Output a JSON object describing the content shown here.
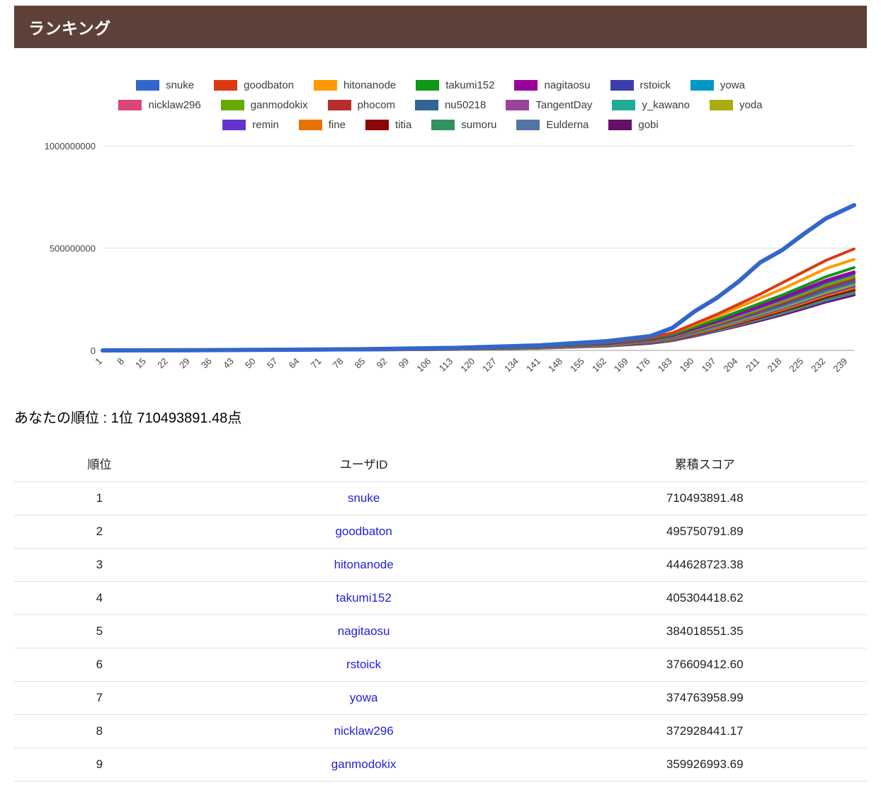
{
  "page": {
    "title": "ランキング",
    "your_rank_text": "あなたの順位 : 1位 710493891.48点"
  },
  "colors": {
    "header_bg": "#5D4037",
    "link": "#2222DD",
    "axis_text": "#444444",
    "gridline": "#e0e0e0",
    "baseline": "#9e9e9e",
    "legend_text": "#3c3c3c"
  },
  "chart_data": {
    "type": "line",
    "title": "",
    "xlabel": "",
    "ylabel": "",
    "legend_position": "top",
    "grid": true,
    "x_range": [
      1,
      241
    ],
    "ylim_points": [
      0,
      1000000000
    ],
    "values_unit": "millions_of_points",
    "y_ticks": [
      {
        "value_millions": 1000,
        "label": "1000000000"
      },
      {
        "value_millions": 500,
        "label": "500000000"
      },
      {
        "value_millions": 0,
        "label": "0"
      }
    ],
    "x_ticks": [
      1,
      8,
      15,
      22,
      29,
      36,
      43,
      50,
      57,
      64,
      71,
      78,
      85,
      92,
      99,
      106,
      113,
      120,
      127,
      134,
      141,
      148,
      155,
      162,
      169,
      176,
      183,
      190,
      197,
      204,
      211,
      218,
      225,
      232,
      239
    ],
    "x_keypoints": [
      1,
      29,
      57,
      85,
      113,
      141,
      162,
      176,
      183,
      190,
      197,
      204,
      211,
      218,
      225,
      232,
      241
    ],
    "legend_rows": [
      [
        0,
        1,
        2,
        3,
        4,
        5,
        6
      ],
      [
        7,
        8,
        9,
        10,
        11,
        12,
        13
      ],
      [
        14,
        15,
        16,
        17,
        18,
        19
      ]
    ],
    "series": [
      {
        "name": "snuke",
        "color": "#3366CC",
        "values": [
          0,
          1,
          3,
          6,
          12,
          25,
          45,
          70,
          110,
          190,
          255,
          335,
          430,
          490,
          570,
          645,
          710
        ]
      },
      {
        "name": "goodbaton",
        "color": "#DC3912",
        "values": [
          0,
          1,
          3,
          6,
          11,
          22,
          40,
          62,
          85,
          130,
          175,
          225,
          275,
          330,
          385,
          440,
          496
        ]
      },
      {
        "name": "hitonanode",
        "color": "#FF9900",
        "values": [
          0,
          1,
          3,
          7,
          13,
          24,
          42,
          64,
          85,
          125,
          165,
          210,
          255,
          300,
          350,
          400,
          445
        ]
      },
      {
        "name": "takumi152",
        "color": "#109618",
        "values": [
          0,
          1,
          2,
          5,
          10,
          20,
          37,
          58,
          78,
          115,
          150,
          190,
          230,
          270,
          315,
          360,
          405
        ]
      },
      {
        "name": "nagitaosu",
        "color": "#990099",
        "values": [
          0,
          1,
          2,
          5,
          10,
          19,
          35,
          55,
          74,
          108,
          142,
          180,
          218,
          258,
          300,
          342,
          384
        ]
      },
      {
        "name": "rstoick",
        "color": "#3B3EAC",
        "values": [
          0,
          1,
          2,
          5,
          9,
          19,
          34,
          54,
          72,
          106,
          140,
          176,
          214,
          252,
          292,
          335,
          377
        ]
      },
      {
        "name": "yowa",
        "color": "#0099C6",
        "values": [
          0,
          1,
          2,
          4,
          9,
          18,
          34,
          53,
          71,
          105,
          138,
          174,
          212,
          250,
          290,
          332,
          375
        ]
      },
      {
        "name": "nicklaw296",
        "color": "#DD4477",
        "values": [
          0,
          1,
          2,
          4,
          9,
          18,
          33,
          52,
          70,
          103,
          136,
          172,
          209,
          247,
          288,
          330,
          373
        ]
      },
      {
        "name": "ganmodokix",
        "color": "#66AA00",
        "values": [
          0,
          1,
          2,
          4,
          8,
          17,
          32,
          50,
          67,
          99,
          131,
          166,
          202,
          239,
          278,
          319,
          360
        ]
      },
      {
        "name": "phocom",
        "color": "#B82E2E",
        "values": [
          0,
          1,
          2,
          4,
          8,
          16,
          31,
          48,
          65,
          96,
          127,
          161,
          196,
          232,
          270,
          310,
          350
        ]
      },
      {
        "name": "nu50218",
        "color": "#316395",
        "values": [
          0,
          1,
          2,
          4,
          8,
          16,
          30,
          47,
          63,
          93,
          123,
          156,
          190,
          225,
          262,
          300,
          340
        ]
      },
      {
        "name": "TangentDay",
        "color": "#994499",
        "values": [
          0,
          1,
          2,
          4,
          7,
          15,
          29,
          46,
          62,
          91,
          121,
          153,
          186,
          221,
          257,
          295,
          334
        ]
      },
      {
        "name": "y_kawano",
        "color": "#22AA99",
        "values": [
          0,
          0,
          2,
          4,
          7,
          15,
          28,
          45,
          60,
          89,
          118,
          150,
          182,
          216,
          252,
          290,
          329
        ]
      },
      {
        "name": "yoda",
        "color": "#AAAA11",
        "values": [
          0,
          0,
          2,
          3,
          7,
          14,
          27,
          44,
          59,
          87,
          115,
          146,
          178,
          211,
          246,
          283,
          322
        ]
      },
      {
        "name": "remin",
        "color": "#6633CC",
        "values": [
          0,
          0,
          1,
          3,
          7,
          14,
          26,
          42,
          57,
          84,
          112,
          142,
          173,
          206,
          240,
          276,
          315
        ]
      },
      {
        "name": "fine",
        "color": "#E67300",
        "values": [
          0,
          0,
          1,
          3,
          6,
          13,
          25,
          41,
          55,
          81,
          108,
          137,
          168,
          199,
          233,
          268,
          306
        ]
      },
      {
        "name": "titia",
        "color": "#8B0707",
        "values": [
          0,
          0,
          1,
          3,
          6,
          13,
          24,
          39,
          53,
          78,
          104,
          132,
          162,
          193,
          225,
          260,
          297
        ]
      },
      {
        "name": "sumoru",
        "color": "#329262",
        "values": [
          0,
          0,
          1,
          3,
          6,
          12,
          23,
          38,
          51,
          76,
          101,
          128,
          157,
          187,
          219,
          253,
          289
        ]
      },
      {
        "name": "Eulderna",
        "color": "#5574A6",
        "values": [
          0,
          0,
          1,
          2,
          5,
          12,
          22,
          37,
          50,
          73,
          97,
          124,
          152,
          181,
          212,
          245,
          280
        ]
      },
      {
        "name": "gobi",
        "color": "#651067",
        "values": [
          0,
          0,
          1,
          2,
          5,
          11,
          21,
          35,
          48,
          70,
          94,
          119,
          146,
          174,
          205,
          237,
          271
        ]
      }
    ]
  },
  "ranking_table": {
    "headers": [
      "順位",
      "ユーザID",
      "累積スコア"
    ],
    "rows": [
      {
        "rank": "1",
        "user": "snuke",
        "score": "710493891.48"
      },
      {
        "rank": "2",
        "user": "goodbaton",
        "score": "495750791.89"
      },
      {
        "rank": "3",
        "user": "hitonanode",
        "score": "444628723.38"
      },
      {
        "rank": "4",
        "user": "takumi152",
        "score": "405304418.62"
      },
      {
        "rank": "5",
        "user": "nagitaosu",
        "score": "384018551.35"
      },
      {
        "rank": "6",
        "user": "rstoick",
        "score": "376609412.60"
      },
      {
        "rank": "7",
        "user": "yowa",
        "score": "374763958.99"
      },
      {
        "rank": "8",
        "user": "nicklaw296",
        "score": "372928441.17"
      },
      {
        "rank": "9",
        "user": "ganmodokix",
        "score": "359926993.69"
      }
    ]
  }
}
